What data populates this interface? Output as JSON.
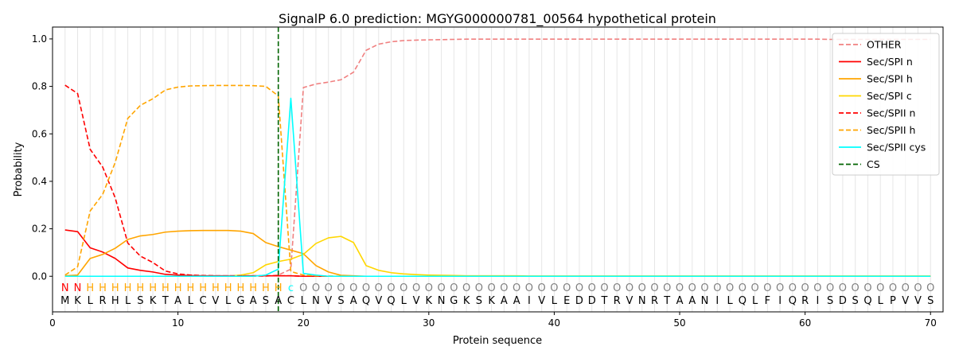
{
  "chart_data": {
    "type": "line",
    "title": "SignalP 6.0 prediction: MGYG000000781_00564 hypothetical protein",
    "xlabel": "Protein sequence",
    "ylabel": "Probability",
    "xlim": [
      0,
      71
    ],
    "ylim": [
      -0.15,
      1.05
    ],
    "x_ticks": [
      0,
      10,
      20,
      30,
      40,
      50,
      60,
      70
    ],
    "y_ticks": [
      0.0,
      0.2,
      0.4,
      0.6,
      0.8,
      1.0
    ],
    "x_tick_labels": [
      "0",
      "10",
      "20",
      "30",
      "40",
      "50",
      "60",
      "70"
    ],
    "y_tick_labels": [
      "0.0",
      "0.2",
      "0.4",
      "0.6",
      "0.8",
      "1.0"
    ],
    "grid": "vertical lines at each residue",
    "legend_position": "top-right",
    "sequence": "MKLRHLSKTALCVLGASACLNVSAQVQLVKNGKSKAAIVLEDDTRVNRTAANILQLFIQRISDSQLPVVS",
    "region_labels": "NNHHHHHHHHHHHHHHHHcOOOOOOOOOOOOOOOOOOOOOOOOOOOOOOOOOOOOOOOOOOOOOOOOOOO",
    "region_colors": {
      "N": "#ff0000",
      "H": "#ffa500",
      "c": "#00ffff",
      "O": "#808080"
    },
    "cs_position": 18,
    "series": [
      {
        "name": "OTHER",
        "color": "#f08080",
        "dash": true,
        "values": [
          0.0,
          0.0,
          0.0,
          0.0,
          0.0,
          0.0,
          0.0,
          0.0,
          0.0,
          0.0,
          0.0,
          0.0,
          0.0,
          0.0,
          0.0,
          0.0,
          0.0,
          0.005,
          0.03,
          0.795,
          0.81,
          0.818,
          0.828,
          0.86,
          0.952,
          0.978,
          0.988,
          0.993,
          0.995,
          0.996,
          0.997,
          0.998,
          0.999,
          0.999,
          0.999,
          0.999,
          0.999,
          0.999,
          0.999,
          0.999,
          0.999,
          0.999,
          0.999,
          0.999,
          0.999,
          0.999,
          0.999,
          0.999,
          0.999,
          0.999,
          0.999,
          0.999,
          0.999,
          0.999,
          0.999,
          0.999,
          0.999,
          0.999,
          0.999,
          0.999,
          0.999,
          0.998,
          0.998,
          0.998,
          0.998,
          0.998,
          0.998,
          0.998,
          0.998,
          0.998
        ]
      },
      {
        "name": "Sec/SPI n",
        "color": "#ff0000",
        "dash": false,
        "values": [
          0.195,
          0.188,
          0.12,
          0.102,
          0.075,
          0.035,
          0.025,
          0.018,
          0.008,
          0.005,
          0.003,
          0.002,
          0.002,
          0.002,
          0.002,
          0.002,
          0.002,
          0.002,
          0.002,
          0.0,
          0.0,
          0.0,
          0.0,
          0.0,
          0.0,
          0.0,
          0.0,
          0.0,
          0.0,
          0.0,
          0.0,
          0.0,
          0.0,
          0.0,
          0.0,
          0.0,
          0.0,
          0.0,
          0.0,
          0.0,
          0.0,
          0.0,
          0.0,
          0.0,
          0.0,
          0.0,
          0.0,
          0.0,
          0.0,
          0.0,
          0.0,
          0.0,
          0.0,
          0.0,
          0.0,
          0.0,
          0.0,
          0.0,
          0.0,
          0.0,
          0.0,
          0.0,
          0.0,
          0.0,
          0.0,
          0.0,
          0.0,
          0.0,
          0.0,
          0.0
        ]
      },
      {
        "name": "Sec/SPI h",
        "color": "#ffa500",
        "dash": false,
        "values": [
          0.002,
          0.005,
          0.075,
          0.092,
          0.118,
          0.155,
          0.17,
          0.176,
          0.186,
          0.19,
          0.192,
          0.193,
          0.193,
          0.193,
          0.19,
          0.18,
          0.142,
          0.125,
          0.11,
          0.095,
          0.045,
          0.018,
          0.004,
          0.002,
          0.0,
          0.0,
          0.0,
          0.0,
          0.0,
          0.0,
          0.0,
          0.0,
          0.0,
          0.0,
          0.0,
          0.0,
          0.0,
          0.0,
          0.0,
          0.0,
          0.0,
          0.0,
          0.0,
          0.0,
          0.0,
          0.0,
          0.0,
          0.0,
          0.0,
          0.0,
          0.0,
          0.0,
          0.0,
          0.0,
          0.0,
          0.0,
          0.0,
          0.0,
          0.0,
          0.0,
          0.0,
          0.0,
          0.0,
          0.0,
          0.0,
          0.0,
          0.0,
          0.0,
          0.0,
          0.0
        ]
      },
      {
        "name": "Sec/SPI c",
        "color": "#ffd700",
        "dash": false,
        "values": [
          0.0,
          0.0,
          0.0,
          0.0,
          0.0,
          0.0,
          0.0,
          0.0,
          0.0,
          0.0,
          0.0,
          0.0,
          0.0,
          0.0,
          0.005,
          0.015,
          0.048,
          0.062,
          0.072,
          0.092,
          0.138,
          0.162,
          0.168,
          0.142,
          0.045,
          0.025,
          0.015,
          0.01,
          0.007,
          0.005,
          0.004,
          0.003,
          0.002,
          0.002,
          0.002,
          0.002,
          0.002,
          0.001,
          0.001,
          0.001,
          0.001,
          0.001,
          0.001,
          0.001,
          0.001,
          0.001,
          0.001,
          0.001,
          0.001,
          0.001,
          0.001,
          0.001,
          0.001,
          0.001,
          0.001,
          0.001,
          0.001,
          0.001,
          0.001,
          0.001,
          0.001,
          0.001,
          0.001,
          0.001,
          0.001,
          0.001,
          0.001,
          0.001,
          0.001,
          0.001
        ]
      },
      {
        "name": "Sec/SPII n",
        "color": "#ff0000",
        "dash": true,
        "values": [
          0.805,
          0.77,
          0.535,
          0.46,
          0.33,
          0.14,
          0.085,
          0.058,
          0.022,
          0.01,
          0.005,
          0.003,
          0.002,
          0.002,
          0.002,
          0.002,
          0.002,
          0.002,
          0.002,
          0.0,
          0.0,
          0.0,
          0.0,
          0.0,
          0.0,
          0.0,
          0.0,
          0.0,
          0.0,
          0.0,
          0.0,
          0.0,
          0.0,
          0.0,
          0.0,
          0.0,
          0.0,
          0.0,
          0.0,
          0.0,
          0.0,
          0.0,
          0.0,
          0.0,
          0.0,
          0.0,
          0.0,
          0.0,
          0.0,
          0.0,
          0.0,
          0.0,
          0.0,
          0.0,
          0.0,
          0.0,
          0.0,
          0.0,
          0.0,
          0.0,
          0.0,
          0.0,
          0.0,
          0.0,
          0.0,
          0.0,
          0.0,
          0.0,
          0.0,
          0.0
        ]
      },
      {
        "name": "Sec/SPII h",
        "color": "#ffa500",
        "dash": true,
        "values": [
          0.005,
          0.04,
          0.275,
          0.345,
          0.48,
          0.665,
          0.72,
          0.748,
          0.785,
          0.797,
          0.802,
          0.803,
          0.804,
          0.804,
          0.804,
          0.803,
          0.8,
          0.76,
          0.02,
          0.005,
          0.002,
          0.001,
          0.0,
          0.0,
          0.0,
          0.0,
          0.0,
          0.0,
          0.0,
          0.0,
          0.0,
          0.0,
          0.0,
          0.0,
          0.0,
          0.0,
          0.0,
          0.0,
          0.0,
          0.0,
          0.0,
          0.0,
          0.0,
          0.0,
          0.0,
          0.0,
          0.0,
          0.0,
          0.0,
          0.0,
          0.0,
          0.0,
          0.0,
          0.0,
          0.0,
          0.0,
          0.0,
          0.0,
          0.0,
          0.0,
          0.0,
          0.0,
          0.0,
          0.0,
          0.0,
          0.0,
          0.0,
          0.0,
          0.0,
          0.0
        ]
      },
      {
        "name": "Sec/SPII cys",
        "color": "#00ffff",
        "dash": false,
        "values": [
          0.0,
          0.0,
          0.0,
          0.0,
          0.0,
          0.0,
          0.0,
          0.0,
          0.0,
          0.0,
          0.0,
          0.0,
          0.0,
          0.0,
          0.0,
          0.0,
          0.005,
          0.03,
          0.75,
          0.012,
          0.005,
          0.0,
          0.0,
          0.0,
          0.0,
          0.0,
          0.0,
          0.0,
          0.0,
          0.0,
          0.0,
          0.0,
          0.0,
          0.0,
          0.0,
          0.0,
          0.0,
          0.0,
          0.0,
          0.0,
          0.0,
          0.0,
          0.0,
          0.0,
          0.0,
          0.0,
          0.0,
          0.0,
          0.0,
          0.0,
          0.0,
          0.0,
          0.0,
          0.0,
          0.0,
          0.0,
          0.0,
          0.0,
          0.0,
          0.0,
          0.0,
          0.0,
          0.0,
          0.0,
          0.0,
          0.0,
          0.0,
          0.0,
          0.0,
          0.0
        ]
      },
      {
        "name": "CS",
        "color": "#006400",
        "dash": true,
        "vertical_at": 18
      }
    ]
  }
}
